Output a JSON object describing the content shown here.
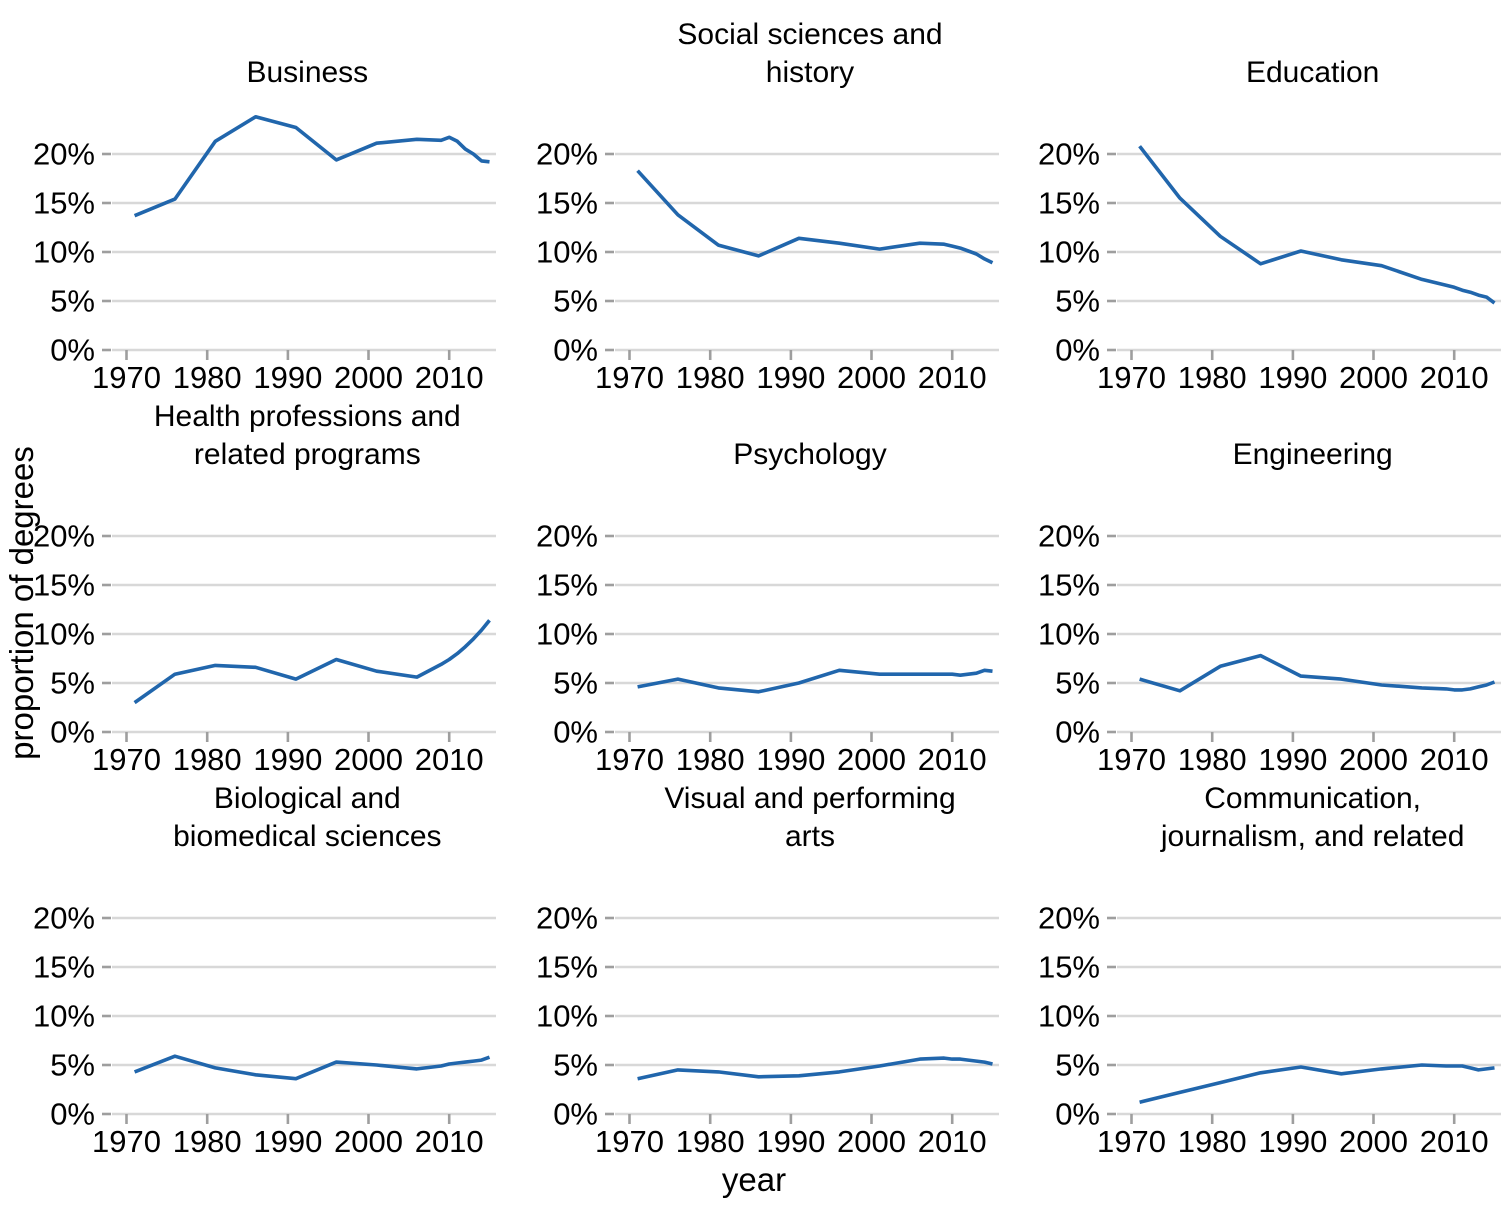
{
  "figure": {
    "ylabel": "proportion of degrees",
    "xlabel": "year",
    "line_color": "#2166ac",
    "grid_color": "#d8d8d8",
    "tick_color": "#9e9e9e",
    "text_color": "#000000",
    "background_color": "#ffffff"
  },
  "axes": {
    "x_ticks": [
      1970,
      1980,
      1990,
      2000,
      2010
    ],
    "x_range": [
      1968.2,
      2015.8
    ],
    "y_ticks_percent": [
      0,
      5,
      10,
      15,
      20
    ],
    "y_tick_labels": [
      "0%",
      "5%",
      "10%",
      "15%",
      "20%"
    ],
    "y_range_percent": [
      0,
      25
    ],
    "grid": "horizontal-only",
    "legend": "none"
  },
  "chart_data": [
    {
      "type": "line",
      "title": "Business",
      "unit": "percent",
      "x": [
        1971,
        1976,
        1981,
        1986,
        1991,
        1996,
        2001,
        2006,
        2009,
        2010,
        2011,
        2012,
        2013,
        2014,
        2015
      ],
      "values": [
        13.7,
        15.4,
        21.3,
        23.8,
        22.7,
        19.4,
        21.1,
        21.5,
        21.4,
        21.7,
        21.3,
        20.5,
        20.0,
        19.3,
        19.2
      ]
    },
    {
      "type": "line",
      "title": "Social sciences and\nhistory",
      "unit": "percent",
      "x": [
        1971,
        1976,
        1981,
        1986,
        1991,
        1996,
        2001,
        2006,
        2009,
        2010,
        2011,
        2012,
        2013,
        2014,
        2015
      ],
      "values": [
        18.3,
        13.8,
        10.7,
        9.6,
        11.4,
        10.9,
        10.3,
        10.9,
        10.8,
        10.6,
        10.4,
        10.1,
        9.8,
        9.3,
        8.9
      ]
    },
    {
      "type": "line",
      "title": "Education",
      "unit": "percent",
      "x": [
        1971,
        1976,
        1981,
        1986,
        1991,
        1996,
        2001,
        2006,
        2009,
        2010,
        2011,
        2012,
        2013,
        2014,
        2015
      ],
      "values": [
        20.8,
        15.5,
        11.6,
        8.8,
        10.1,
        9.2,
        8.6,
        7.2,
        6.6,
        6.4,
        6.1,
        5.9,
        5.6,
        5.4,
        4.8
      ]
    },
    {
      "type": "line",
      "title": "Health professions and\nrelated programs",
      "unit": "percent",
      "x": [
        1971,
        1976,
        1981,
        1986,
        1991,
        1996,
        2001,
        2006,
        2009,
        2010,
        2011,
        2012,
        2013,
        2014,
        2015
      ],
      "values": [
        3.0,
        5.9,
        6.8,
        6.6,
        5.4,
        7.4,
        6.2,
        5.6,
        6.9,
        7.4,
        8.0,
        8.7,
        9.5,
        10.4,
        11.4
      ]
    },
    {
      "type": "line",
      "title": "Psychology",
      "unit": "percent",
      "x": [
        1971,
        1976,
        1981,
        1986,
        1991,
        1996,
        2001,
        2006,
        2009,
        2010,
        2011,
        2012,
        2013,
        2014,
        2015
      ],
      "values": [
        4.6,
        5.4,
        4.5,
        4.1,
        5.0,
        6.3,
        5.9,
        5.9,
        5.9,
        5.9,
        5.8,
        5.9,
        6.0,
        6.3,
        6.2
      ]
    },
    {
      "type": "line",
      "title": "Engineering",
      "unit": "percent",
      "x": [
        1971,
        1976,
        1981,
        1986,
        1991,
        1996,
        2001,
        2006,
        2009,
        2010,
        2011,
        2012,
        2013,
        2014,
        2015
      ],
      "values": [
        5.4,
        4.2,
        6.7,
        7.8,
        5.7,
        5.4,
        4.8,
        4.5,
        4.4,
        4.3,
        4.3,
        4.4,
        4.6,
        4.8,
        5.1
      ]
    },
    {
      "type": "line",
      "title": "Biological and\nbiomedical sciences",
      "unit": "percent",
      "x": [
        1971,
        1976,
        1981,
        1986,
        1991,
        1996,
        2001,
        2006,
        2009,
        2010,
        2011,
        2012,
        2013,
        2014,
        2015
      ],
      "values": [
        4.3,
        5.9,
        4.7,
        4.0,
        3.6,
        5.3,
        5.0,
        4.6,
        4.9,
        5.1,
        5.2,
        5.3,
        5.4,
        5.5,
        5.8
      ]
    },
    {
      "type": "line",
      "title": "Visual and performing\narts",
      "unit": "percent",
      "x": [
        1971,
        1976,
        1981,
        1986,
        1991,
        1996,
        2001,
        2006,
        2009,
        2010,
        2011,
        2012,
        2013,
        2014,
        2015
      ],
      "values": [
        3.6,
        4.5,
        4.3,
        3.8,
        3.9,
        4.3,
        4.9,
        5.6,
        5.7,
        5.6,
        5.6,
        5.5,
        5.4,
        5.3,
        5.1
      ]
    },
    {
      "type": "line",
      "title": "Communication,\njournalism, and related",
      "unit": "percent",
      "x": [
        1971,
        1976,
        1981,
        1986,
        1991,
        1996,
        2001,
        2006,
        2009,
        2010,
        2011,
        2012,
        2013,
        2014,
        2015
      ],
      "values": [
        1.2,
        2.2,
        3.2,
        4.2,
        4.8,
        4.1,
        4.6,
        5.0,
        4.9,
        4.9,
        4.9,
        4.7,
        4.5,
        4.6,
        4.7
      ]
    }
  ]
}
